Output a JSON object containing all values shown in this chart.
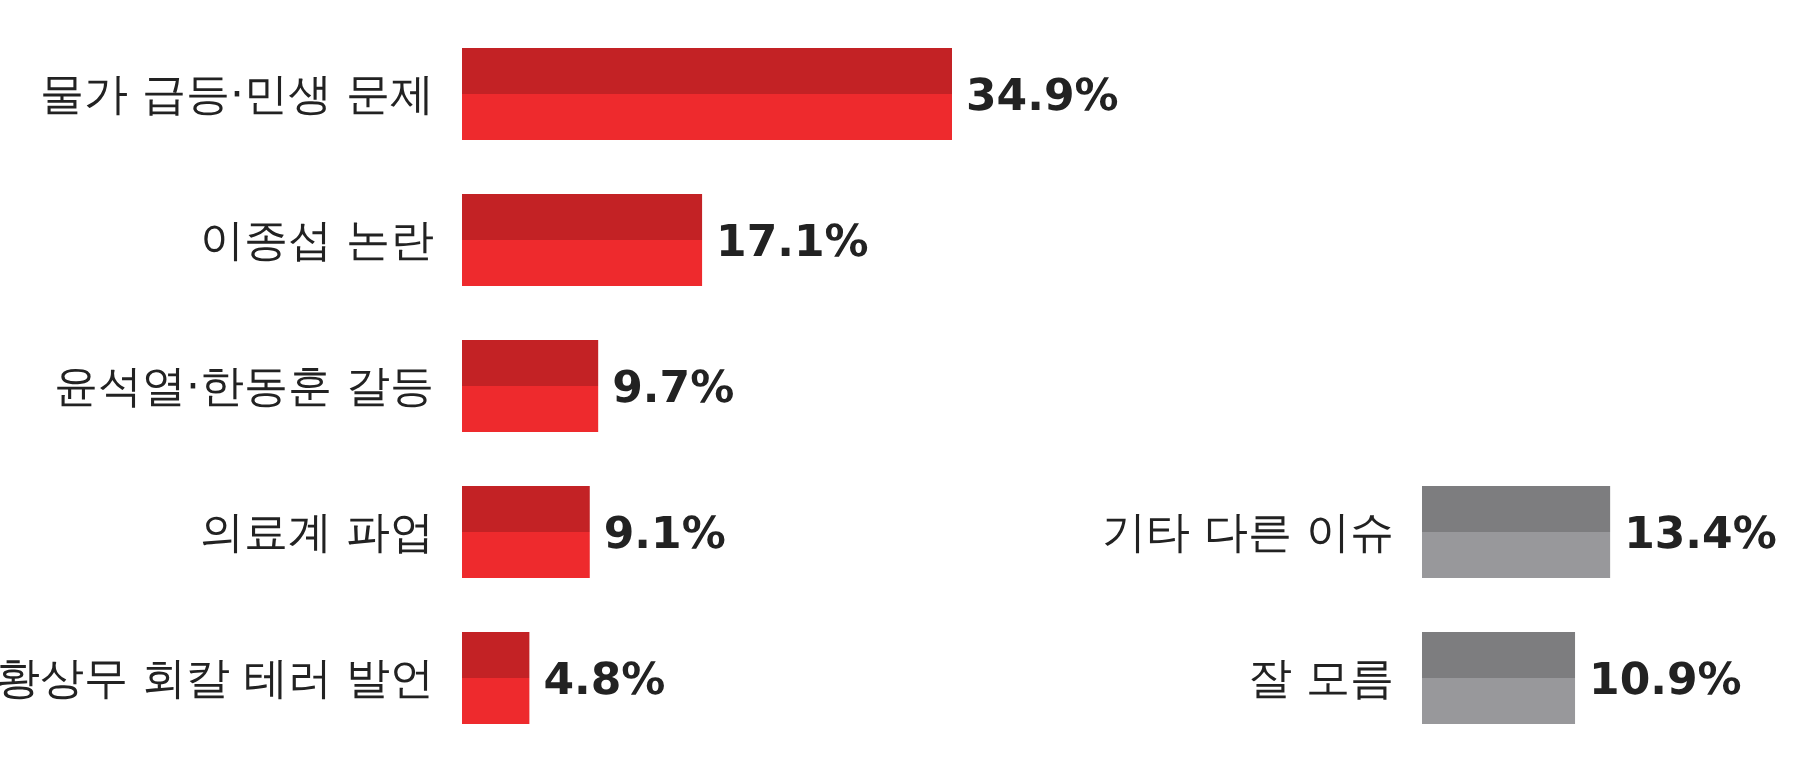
{
  "chart_data": [
    {
      "type": "bar",
      "orientation": "horizontal",
      "categories": [
        "물가 급등·민생 문제",
        "이종섭 논란",
        "윤석열·한동훈 갈등",
        "의료계 파업",
        "황상무 회칼 테러 발언"
      ],
      "values": [
        34.9,
        17.1,
        9.7,
        9.1,
        4.8
      ],
      "color": "#ee2a2d",
      "value_labels": [
        "34.9%",
        "17.1%",
        "9.7%",
        "9.1%",
        "4.8%"
      ],
      "tick_labels": "y",
      "grid": false,
      "legend": false
    },
    {
      "type": "bar",
      "orientation": "horizontal",
      "categories": [
        "기타 다른 이슈",
        "잘 모름"
      ],
      "values": [
        13.4,
        10.9
      ],
      "color": "#98989b",
      "value_labels": [
        "13.4%",
        "10.9%"
      ],
      "tick_labels": "y",
      "grid": false,
      "legend": false
    }
  ]
}
